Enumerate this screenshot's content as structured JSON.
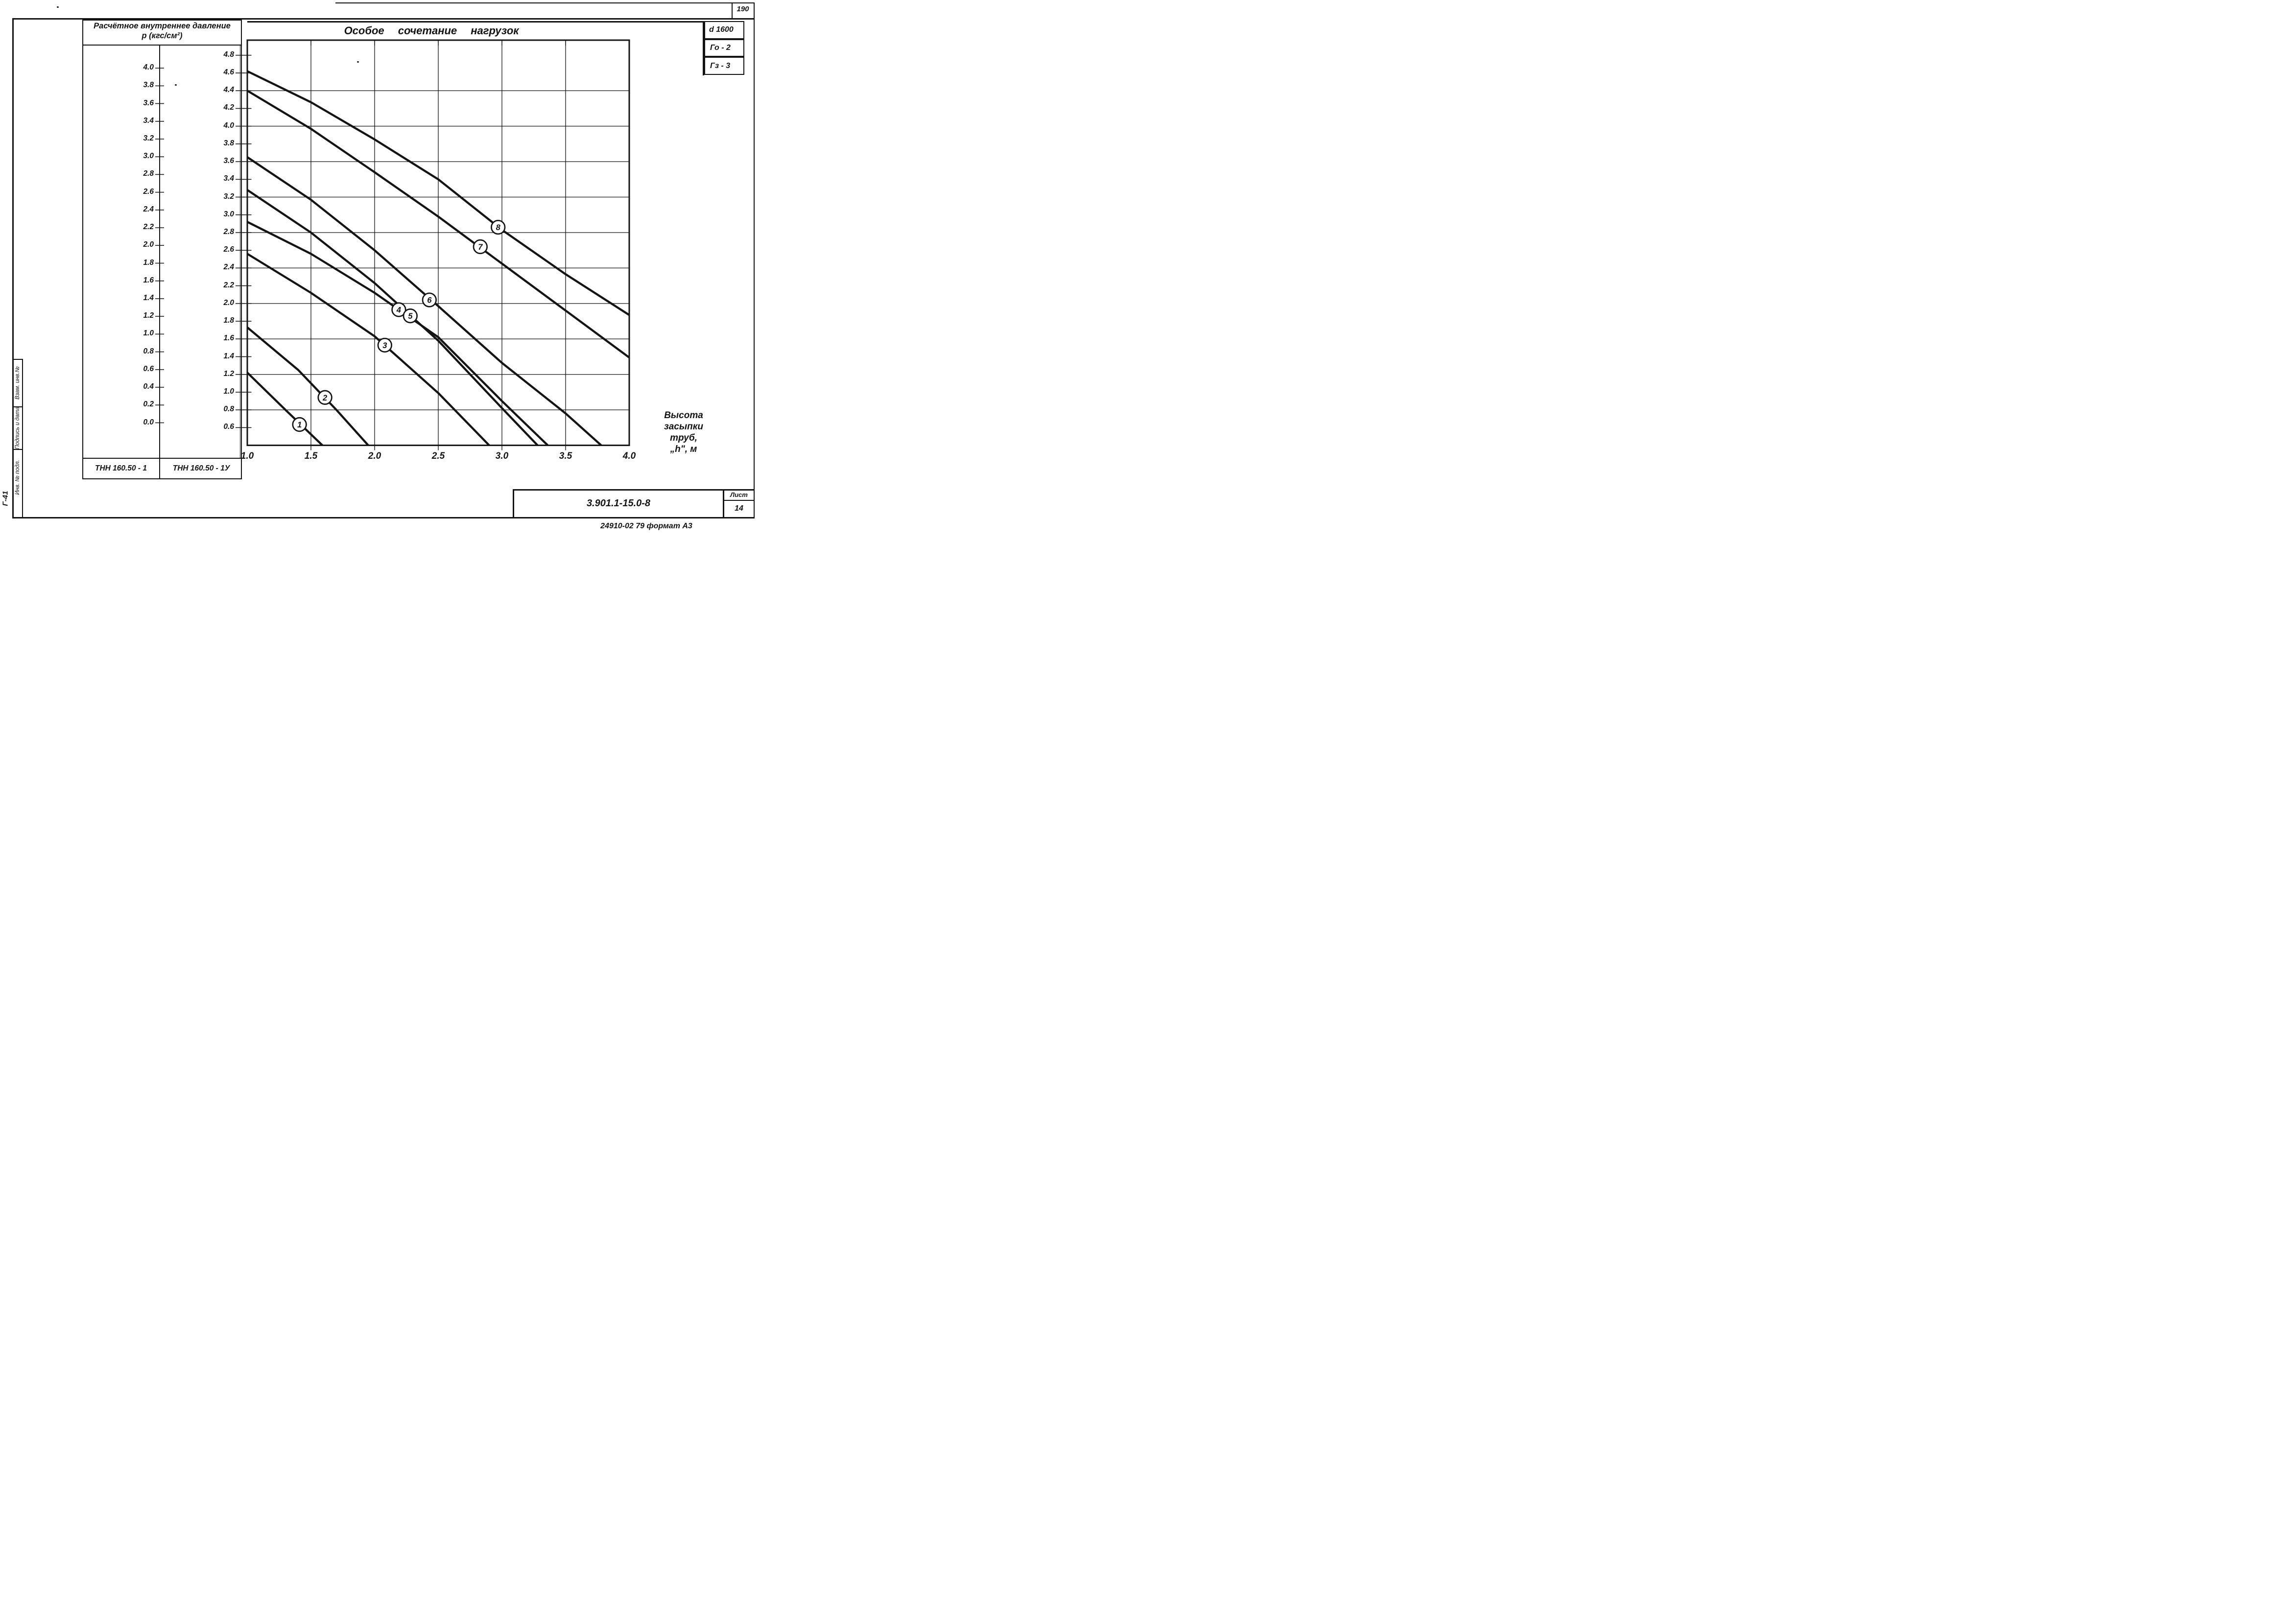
{
  "page": {
    "corner_number": "190",
    "footer_note": "24910-02   79   формат А3",
    "margin_code": "Г-41"
  },
  "stamp_boxes": [
    {
      "label": "d 1600"
    },
    {
      "label": "Го - 2"
    },
    {
      "label": "Гз - 3"
    }
  ],
  "side_strip": {
    "cells": [
      {
        "label": "Взам. инв.№"
      },
      {
        "label": "Подпись и дата"
      },
      {
        "label": "Инв. № подл."
      }
    ]
  },
  "title_block": {
    "doc_number": "3.901.1-15.0-8",
    "sheet_label": "Лист",
    "sheet_number": "14"
  },
  "left_panel": {
    "header_line1": "Расчётное внутреннее давление",
    "header_line2": "р (кгс/см²)",
    "col1": {
      "footer": "ТНН 160.50 - 1",
      "tick_labels": [
        "4.0",
        "3.8",
        "3.6",
        "3.4",
        "3.2",
        "3.0",
        "2.8",
        "2.6",
        "2.4",
        "2.2",
        "2.0",
        "1.8",
        "1.6",
        "1.4",
        "1.2",
        "1.0",
        "0.8",
        "0.6",
        "0.4",
        "0.2",
        "0.0"
      ]
    },
    "col2": {
      "footer": "ТНН 160.50 - 1У",
      "tick_labels": [
        "4.8",
        "4.6",
        "4.4",
        "4.2",
        "4.0",
        "3.8",
        "3.6",
        "3.4",
        "3.2",
        "3.0",
        "2.8",
        "2.6",
        "2.4",
        "2.2",
        "2.0",
        "1.8",
        "1.6",
        "1.4",
        "1.2",
        "1.0",
        "0.8",
        "0.6"
      ]
    }
  },
  "chart_data": {
    "type": "line",
    "title": "Особое сочетание нагрузок",
    "xlabel": "Высота засыпки труб, „h\", м",
    "xlabel_lines": [
      "Высота",
      "засыпки",
      "труб,",
      "„h\", м"
    ],
    "ylabel": "Расчётное внутреннее давление р (кгс/см²)",
    "xlim": [
      1.0,
      4.0
    ],
    "ylim": [
      0.4,
      4.97
    ],
    "grid": "on",
    "x_tick_labels": [
      "1.0",
      "1.5",
      "2.0",
      "2.5",
      "3.0",
      "3.5",
      "4.0"
    ],
    "x_ticks": [
      1.0,
      1.5,
      2.0,
      2.5,
      3.0,
      3.5,
      4.0
    ],
    "grid_x": [
      1.5,
      2.0,
      2.5,
      3.0,
      3.5
    ],
    "grid_y": [
      0.8,
      1.2,
      1.6,
      2.0,
      2.4,
      2.8,
      3.2,
      3.6,
      4.0,
      4.4
    ],
    "series": [
      {
        "name": "1",
        "label_at": [
          1.41,
          0.635
        ],
        "points": [
          [
            1.0,
            1.22
          ],
          [
            1.3,
            0.8
          ],
          [
            1.59,
            0.4
          ]
        ]
      },
      {
        "name": "2",
        "label_at": [
          1.61,
          0.94
        ],
        "points": [
          [
            1.0,
            1.73
          ],
          [
            1.4,
            1.25
          ],
          [
            1.7,
            0.8
          ],
          [
            1.95,
            0.4
          ]
        ]
      },
      {
        "name": "3",
        "label_at": [
          2.08,
          1.53
        ],
        "points": [
          [
            1.0,
            2.56
          ],
          [
            1.5,
            2.12
          ],
          [
            2.0,
            1.63
          ],
          [
            2.5,
            0.99
          ],
          [
            2.9,
            0.4
          ]
        ]
      },
      {
        "name": "4",
        "label_at": [
          2.19,
          1.93
        ],
        "points": [
          [
            1.0,
            2.92
          ],
          [
            1.5,
            2.56
          ],
          [
            2.0,
            2.12
          ],
          [
            2.5,
            1.62
          ],
          [
            3.0,
            0.9
          ],
          [
            3.36,
            0.4
          ]
        ]
      },
      {
        "name": "5",
        "label_at": [
          2.28,
          1.86
        ],
        "points": [
          [
            1.0,
            3.28
          ],
          [
            1.5,
            2.8
          ],
          [
            2.0,
            2.23
          ],
          [
            2.5,
            1.58
          ],
          [
            3.0,
            0.82
          ],
          [
            3.28,
            0.4
          ]
        ]
      },
      {
        "name": "6",
        "label_at": [
          2.43,
          2.04
        ],
        "points": [
          [
            1.0,
            3.65
          ],
          [
            1.5,
            3.17
          ],
          [
            2.0,
            2.6
          ],
          [
            2.5,
            1.97
          ],
          [
            3.0,
            1.33
          ],
          [
            3.5,
            0.76
          ],
          [
            3.78,
            0.4
          ]
        ]
      },
      {
        "name": "7",
        "label_at": [
          2.83,
          2.64
        ],
        "points": [
          [
            1.0,
            4.4
          ],
          [
            1.5,
            3.97
          ],
          [
            2.0,
            3.48
          ],
          [
            2.5,
            2.98
          ],
          [
            3.0,
            2.45
          ],
          [
            3.5,
            1.92
          ],
          [
            4.0,
            1.39
          ]
        ]
      },
      {
        "name": "8",
        "label_at": [
          2.97,
          2.86
        ],
        "points": [
          [
            1.0,
            4.62
          ],
          [
            1.5,
            4.27
          ],
          [
            2.0,
            3.85
          ],
          [
            2.5,
            3.4
          ],
          [
            3.0,
            2.83
          ],
          [
            3.5,
            2.33
          ],
          [
            4.0,
            1.87
          ]
        ]
      }
    ]
  }
}
